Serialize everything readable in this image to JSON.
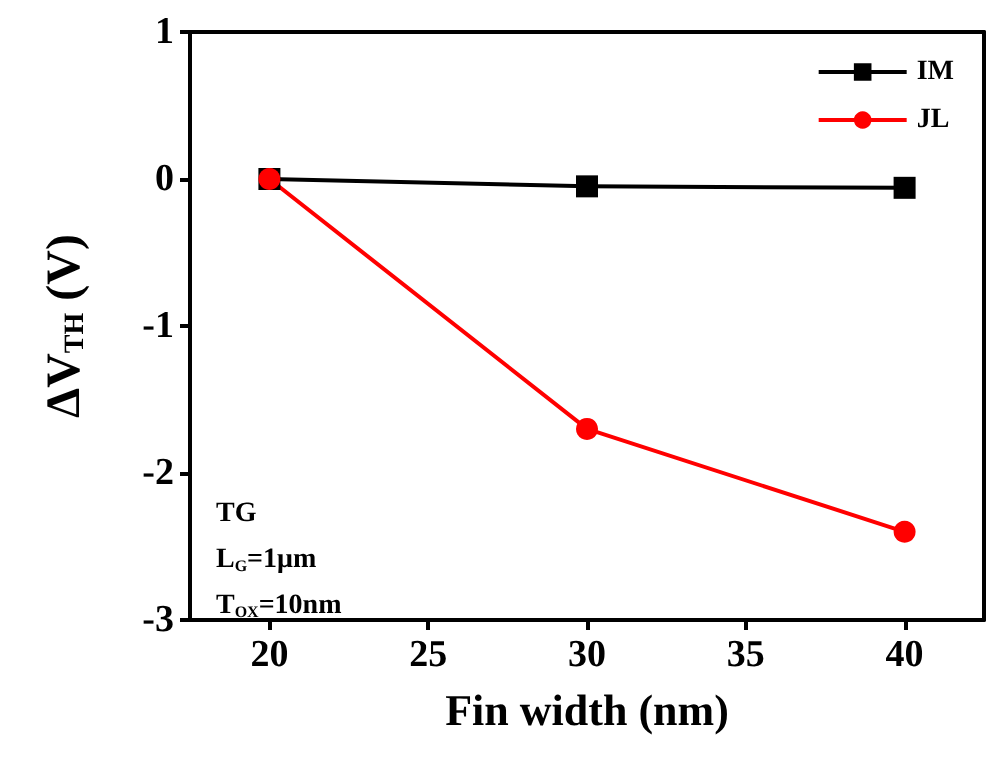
{
  "chart_data": {
    "type": "line",
    "xlabel": "Fin width (nm)",
    "ylabel": "ΔV$_{TH}$ (V)",
    "x": [
      20,
      30,
      40
    ],
    "series": [
      {
        "name": "IM",
        "color": "#000000",
        "marker": "square",
        "values": [
          0,
          -0.05,
          -0.06
        ]
      },
      {
        "name": "JL",
        "color": "#ff0000",
        "marker": "circle",
        "values": [
          0,
          -1.7,
          -2.4
        ]
      }
    ],
    "xlim": [
      17.5,
      42.5
    ],
    "xticks": [
      20,
      25,
      30,
      35,
      40
    ],
    "ylim": [
      -3,
      1
    ],
    "yticks": [
      -3,
      -2,
      -1,
      0,
      1
    ],
    "annotations": [
      "TG",
      "L$_{G}$=1μm",
      "T$_{OX}$=10nm"
    ],
    "legend": "top right",
    "grid": false,
    "line_style": "solid"
  }
}
